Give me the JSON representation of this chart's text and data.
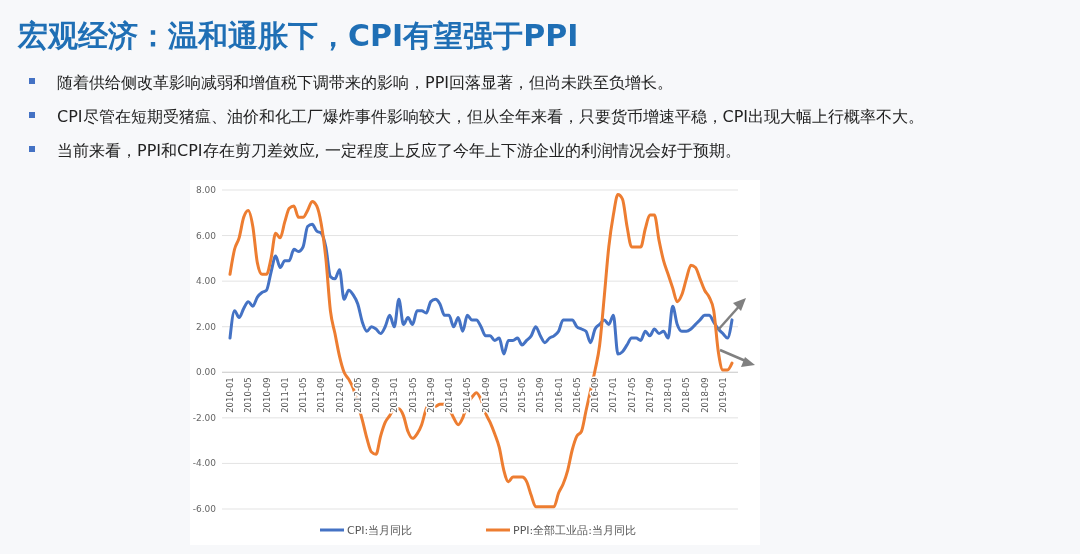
{
  "chart_data": {
    "type": "line",
    "title": "宏观经济：温和通胀下，CPI有望强于PPI",
    "annotations": [
      "随着供给侧改革影响减弱和增值税下调带来的影响，PPI回落显著，但尚未跌至负增长。",
      "CPI尽管在短期受猪瘟、油价和化工厂爆炸事件影响较大，但从全年来看，只要货币增速平稳，CPI出现大幅上行概率不大。",
      "当前来看，PPI和CPI存在剪刀差效应, 一定程度上反应了今年上下游企业的利润情况会好于预期。"
    ],
    "categories": [
      "2010-01",
      null,
      null,
      null,
      "2010-05",
      null,
      null,
      null,
      "2010-09",
      null,
      null,
      null,
      "2011-01",
      null,
      null,
      null,
      "2011-05",
      null,
      null,
      null,
      "2011-09",
      null,
      null,
      null,
      "2012-01",
      null,
      null,
      null,
      "2012-05",
      null,
      null,
      null,
      "2012-09",
      null,
      null,
      null,
      "2013-01",
      null,
      null,
      null,
      "2013-05",
      null,
      null,
      null,
      "2013-09",
      null,
      null,
      null,
      "2014-01",
      null,
      null,
      null,
      "2014-05",
      null,
      null,
      null,
      "2014-09",
      null,
      null,
      null,
      "2015-01",
      null,
      null,
      null,
      "2015-05",
      null,
      null,
      null,
      "2015-09",
      null,
      null,
      null,
      "2016-01",
      null,
      null,
      null,
      "2016-05",
      null,
      null,
      null,
      "2016-09",
      null,
      null,
      null,
      "2017-01",
      null,
      null,
      null,
      "2017-05",
      null,
      null,
      null,
      "2017-09",
      null,
      null,
      null,
      "2018-01",
      null,
      null,
      null,
      "2018-05",
      null,
      null,
      null,
      "2018-09",
      null,
      null,
      null,
      "2019-01",
      null,
      null
    ],
    "series": [
      {
        "name": "CPI:当月同比",
        "color": "#4472c4",
        "values": [
          1.5,
          2.7,
          2.4,
          2.8,
          3.1,
          2.9,
          3.3,
          3.5,
          3.6,
          4.4,
          5.1,
          4.6,
          4.9,
          4.9,
          5.4,
          5.3,
          5.5,
          6.4,
          6.5,
          6.2,
          6.1,
          5.5,
          4.2,
          4.1,
          4.5,
          3.2,
          3.6,
          3.4,
          3.0,
          2.2,
          1.8,
          2.0,
          1.9,
          1.7,
          2.0,
          2.5,
          2.0,
          3.2,
          2.1,
          2.4,
          2.1,
          2.7,
          2.7,
          2.6,
          3.1,
          3.2,
          3.0,
          2.5,
          2.5,
          2.0,
          2.4,
          1.8,
          2.5,
          2.3,
          2.3,
          2.0,
          1.6,
          1.6,
          1.4,
          1.5,
          0.8,
          1.4,
          1.4,
          1.5,
          1.2,
          1.4,
          1.6,
          2.0,
          1.6,
          1.3,
          1.5,
          1.6,
          1.8,
          2.3,
          2.3,
          2.3,
          2.0,
          1.9,
          1.8,
          1.3,
          1.9,
          2.1,
          2.3,
          2.1,
          2.5,
          0.8,
          0.9,
          1.2,
          1.5,
          1.5,
          1.4,
          1.8,
          1.6,
          1.9,
          1.7,
          1.8,
          1.5,
          2.9,
          2.1,
          1.8,
          1.8,
          1.9,
          2.1,
          2.3,
          2.5,
          2.5,
          2.2,
          1.9,
          1.7,
          1.5,
          2.3
        ]
      },
      {
        "name": "PPI:全部工业品:当月同比",
        "color": "#ed7d31",
        "values": [
          4.3,
          5.4,
          5.9,
          6.8,
          7.1,
          6.4,
          4.8,
          4.3,
          4.3,
          5.0,
          6.1,
          5.9,
          6.6,
          7.2,
          7.3,
          6.8,
          6.8,
          7.1,
          7.5,
          7.3,
          6.5,
          5.0,
          2.7,
          1.7,
          0.7,
          0.0,
          -0.3,
          -0.7,
          -1.4,
          -2.1,
          -2.9,
          -3.5,
          -3.6,
          -2.8,
          -2.2,
          -1.9,
          -1.6,
          -1.6,
          -1.9,
          -2.6,
          -2.9,
          -2.7,
          -2.3,
          -1.6,
          -1.3,
          -1.5,
          -1.4,
          -1.4,
          -1.6,
          -2.0,
          -2.3,
          -2.0,
          -1.4,
          -1.1,
          -0.9,
          -1.2,
          -1.8,
          -2.2,
          -2.7,
          -3.3,
          -4.3,
          -4.8,
          -4.6,
          -4.6,
          -4.6,
          -4.8,
          -5.4,
          -5.9,
          -5.9,
          -5.9,
          -5.9,
          -5.9,
          -5.3,
          -4.9,
          -4.3,
          -3.4,
          -2.8,
          -2.6,
          -1.7,
          -0.8,
          0.1,
          1.2,
          3.3,
          5.5,
          6.9,
          7.8,
          7.6,
          6.4,
          5.5,
          5.5,
          5.5,
          6.3,
          6.9,
          6.9,
          5.8,
          4.9,
          4.3,
          3.7,
          3.1,
          3.4,
          4.1,
          4.7,
          4.6,
          4.1,
          3.6,
          3.3,
          2.7,
          0.9,
          0.1,
          0.1,
          0.4
        ]
      }
    ],
    "ylim": [
      -6,
      8
    ],
    "yticks": [
      {
        "value": -6,
        "label": "-6.00"
      },
      {
        "value": -4,
        "label": "-4.00"
      },
      {
        "value": -2,
        "label": "-2.00"
      },
      {
        "value": 0,
        "label": "0.00"
      },
      {
        "value": 2,
        "label": "2.00"
      },
      {
        "value": 4,
        "label": "4.00"
      },
      {
        "value": 6,
        "label": "6.00"
      },
      {
        "value": 8,
        "label": "8.00"
      }
    ],
    "grid": "y",
    "legend": "bottom",
    "marker": "none",
    "line_style": "solid"
  }
}
